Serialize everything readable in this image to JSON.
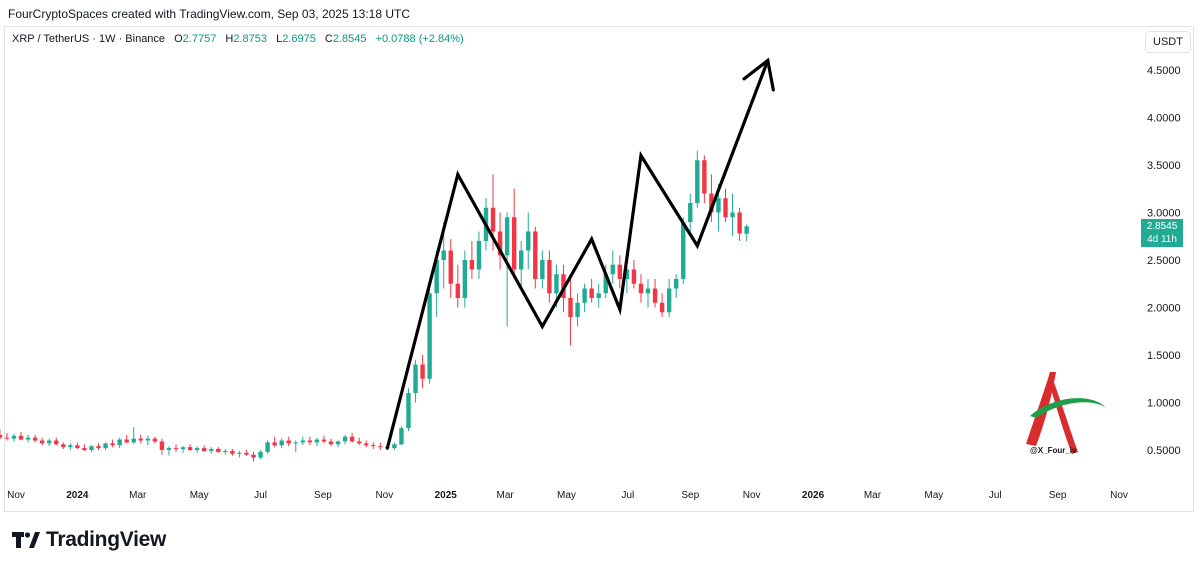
{
  "header": {
    "attribution": "FourCryptoSpaces created with TradingView.com, Sep 03, 2025 13:18 UTC"
  },
  "legend": {
    "symbol": "XRP / TetherUS · 1W · Binance",
    "open_key": "O",
    "open": "2.7757",
    "high_key": "H",
    "high": "2.8753",
    "low_key": "L",
    "low": "2.6975",
    "close_key": "C",
    "close": "2.8545",
    "change": "+0.0788 (+2.84%)"
  },
  "price_scale": {
    "unit_label": "USDT",
    "current_price": "2.8545",
    "countdown": "4d 11h"
  },
  "watermark": {
    "handle": "@X_Four_iv"
  },
  "brand": {
    "name": "TradingView"
  },
  "colors": {
    "up": "#22ab94",
    "down": "#f23645",
    "projection": "#000000",
    "accent": "#089981"
  },
  "chart_data": {
    "type": "candlestick",
    "y_scale": "linear",
    "ylim": [
      0.2,
      4.8
    ],
    "y_ticks": [
      "4.5000",
      "4.0000",
      "3.5000",
      "3.0000",
      "2.5000",
      "2.0000",
      "1.5000",
      "1.0000",
      "0.5000"
    ],
    "y_tick_values": [
      4.5,
      4.0,
      3.5,
      3.0,
      2.5,
      2.0,
      1.5,
      1.0,
      0.5
    ],
    "x_ticks": [
      "Nov",
      "2024",
      "Mar",
      "May",
      "Jul",
      "Sep",
      "Nov",
      "2025",
      "Mar",
      "May",
      "Jul",
      "Sep",
      "Nov",
      "2026",
      "Mar",
      "May",
      "Jul",
      "Sep",
      "Nov"
    ],
    "x_tick_dates": [
      "2023-11-01",
      "2024-01-01",
      "2024-03-01",
      "2024-05-01",
      "2024-07-01",
      "2024-09-01",
      "2024-11-01",
      "2025-01-01",
      "2025-03-01",
      "2025-05-01",
      "2025-07-01",
      "2025-09-01",
      "2025-11-01",
      "2026-01-01",
      "2026-03-01",
      "2026-05-01",
      "2026-07-01",
      "2026-09-01",
      "2026-11-01"
    ],
    "candles_ohlc": [
      [
        0.62,
        0.7,
        0.58,
        0.66
      ],
      [
        0.66,
        0.72,
        0.61,
        0.63
      ],
      [
        0.63,
        0.68,
        0.6,
        0.62
      ],
      [
        0.62,
        0.67,
        0.59,
        0.65
      ],
      [
        0.65,
        0.69,
        0.6,
        0.61
      ],
      [
        0.61,
        0.66,
        0.58,
        0.63
      ],
      [
        0.63,
        0.66,
        0.58,
        0.6
      ],
      [
        0.6,
        0.63,
        0.55,
        0.57
      ],
      [
        0.57,
        0.62,
        0.54,
        0.6
      ],
      [
        0.6,
        0.63,
        0.55,
        0.56
      ],
      [
        0.56,
        0.58,
        0.51,
        0.53
      ],
      [
        0.53,
        0.57,
        0.5,
        0.55
      ],
      [
        0.55,
        0.58,
        0.51,
        0.52
      ],
      [
        0.52,
        0.56,
        0.49,
        0.5
      ],
      [
        0.5,
        0.55,
        0.48,
        0.54
      ],
      [
        0.54,
        0.57,
        0.5,
        0.52
      ],
      [
        0.52,
        0.58,
        0.5,
        0.57
      ],
      [
        0.57,
        0.61,
        0.53,
        0.55
      ],
      [
        0.55,
        0.63,
        0.52,
        0.61
      ],
      [
        0.61,
        0.66,
        0.57,
        0.58
      ],
      [
        0.58,
        0.74,
        0.56,
        0.62
      ],
      [
        0.62,
        0.66,
        0.57,
        0.6
      ],
      [
        0.6,
        0.65,
        0.55,
        0.62
      ],
      [
        0.62,
        0.64,
        0.57,
        0.59
      ],
      [
        0.59,
        0.62,
        0.45,
        0.5
      ],
      [
        0.5,
        0.54,
        0.44,
        0.52
      ],
      [
        0.52,
        0.56,
        0.48,
        0.51
      ],
      [
        0.51,
        0.54,
        0.47,
        0.53
      ],
      [
        0.53,
        0.56,
        0.49,
        0.5
      ],
      [
        0.5,
        0.54,
        0.47,
        0.52
      ],
      [
        0.52,
        0.55,
        0.48,
        0.49
      ],
      [
        0.49,
        0.53,
        0.46,
        0.51
      ],
      [
        0.51,
        0.53,
        0.47,
        0.48
      ],
      [
        0.48,
        0.51,
        0.45,
        0.49
      ],
      [
        0.49,
        0.51,
        0.44,
        0.46
      ],
      [
        0.46,
        0.49,
        0.42,
        0.47
      ],
      [
        0.47,
        0.5,
        0.44,
        0.45
      ],
      [
        0.45,
        0.48,
        0.38,
        0.42
      ],
      [
        0.42,
        0.5,
        0.4,
        0.48
      ],
      [
        0.48,
        0.6,
        0.46,
        0.58
      ],
      [
        0.58,
        0.64,
        0.53,
        0.55
      ],
      [
        0.55,
        0.62,
        0.52,
        0.6
      ],
      [
        0.6,
        0.64,
        0.54,
        0.57
      ],
      [
        0.57,
        0.6,
        0.48,
        0.58
      ],
      [
        0.58,
        0.64,
        0.55,
        0.6
      ],
      [
        0.6,
        0.64,
        0.55,
        0.58
      ],
      [
        0.58,
        0.63,
        0.54,
        0.61
      ],
      [
        0.61,
        0.65,
        0.57,
        0.59
      ],
      [
        0.59,
        0.62,
        0.54,
        0.56
      ],
      [
        0.56,
        0.6,
        0.53,
        0.59
      ],
      [
        0.59,
        0.66,
        0.56,
        0.64
      ],
      [
        0.64,
        0.68,
        0.58,
        0.59
      ],
      [
        0.59,
        0.63,
        0.55,
        0.57
      ],
      [
        0.57,
        0.6,
        0.53,
        0.55
      ],
      [
        0.55,
        0.58,
        0.51,
        0.54
      ],
      [
        0.54,
        0.58,
        0.5,
        0.53
      ],
      [
        0.53,
        0.56,
        0.5,
        0.52
      ],
      [
        0.52,
        0.58,
        0.5,
        0.56
      ],
      [
        0.56,
        0.75,
        0.55,
        0.73
      ],
      [
        0.73,
        1.15,
        0.7,
        1.1
      ],
      [
        1.1,
        1.45,
        1.0,
        1.4
      ],
      [
        1.4,
        1.5,
        1.15,
        1.25
      ],
      [
        1.25,
        2.2,
        1.2,
        2.15
      ],
      [
        2.15,
        2.6,
        1.9,
        2.5
      ],
      [
        2.5,
        2.9,
        2.2,
        2.6
      ],
      [
        2.6,
        2.72,
        2.1,
        2.25
      ],
      [
        2.25,
        2.45,
        2.0,
        2.1
      ],
      [
        2.1,
        2.6,
        2.0,
        2.5
      ],
      [
        2.5,
        2.7,
        2.3,
        2.4
      ],
      [
        2.4,
        2.8,
        2.3,
        2.7
      ],
      [
        2.7,
        3.15,
        2.6,
        3.05
      ],
      [
        3.05,
        3.4,
        2.6,
        2.8
      ],
      [
        2.8,
        3.0,
        2.4,
        2.55
      ],
      [
        2.55,
        3.0,
        1.8,
        2.95
      ],
      [
        2.95,
        3.25,
        2.3,
        2.4
      ],
      [
        2.4,
        2.7,
        2.2,
        2.6
      ],
      [
        2.6,
        3.0,
        2.4,
        2.8
      ],
      [
        2.8,
        2.85,
        2.2,
        2.3
      ],
      [
        2.3,
        2.6,
        2.2,
        2.5
      ],
      [
        2.5,
        2.6,
        2.05,
        2.15
      ],
      [
        2.15,
        2.45,
        2.0,
        2.35
      ],
      [
        2.35,
        2.45,
        1.95,
        2.1
      ],
      [
        2.1,
        2.3,
        1.6,
        1.9
      ],
      [
        1.9,
        2.15,
        1.8,
        2.05
      ],
      [
        2.05,
        2.25,
        1.95,
        2.2
      ],
      [
        2.2,
        2.3,
        2.05,
        2.1
      ],
      [
        2.1,
        2.25,
        2.0,
        2.15
      ],
      [
        2.15,
        2.45,
        2.1,
        2.35
      ],
      [
        2.35,
        2.6,
        2.25,
        2.45
      ],
      [
        2.45,
        2.55,
        2.2,
        2.3
      ],
      [
        2.3,
        2.5,
        2.15,
        2.4
      ],
      [
        2.4,
        2.5,
        2.2,
        2.25
      ],
      [
        2.25,
        2.35,
        2.05,
        2.15
      ],
      [
        2.15,
        2.3,
        2.0,
        2.2
      ],
      [
        2.2,
        2.3,
        2.0,
        2.05
      ],
      [
        2.05,
        2.15,
        1.9,
        1.95
      ],
      [
        1.95,
        2.3,
        1.9,
        2.2
      ],
      [
        2.2,
        2.35,
        2.1,
        2.3
      ],
      [
        2.3,
        2.95,
        2.25,
        2.9
      ],
      [
        2.9,
        3.2,
        2.8,
        3.1
      ],
      [
        3.1,
        3.65,
        3.05,
        3.55
      ],
      [
        3.55,
        3.6,
        3.1,
        3.2
      ],
      [
        3.2,
        3.4,
        2.9,
        3.0
      ],
      [
        3.0,
        3.3,
        2.8,
        3.15
      ],
      [
        3.15,
        3.25,
        2.9,
        2.95
      ],
      [
        2.95,
        3.2,
        2.75,
        3.0
      ],
      [
        3.0,
        3.05,
        2.7,
        2.78
      ],
      [
        2.7757,
        2.8753,
        2.6975,
        2.8545
      ]
    ],
    "candles_start": "2023-10-09",
    "candles_step_days": 7,
    "projection_path": [
      [
        "2024-11-04",
        0.52
      ],
      [
        "2025-01-13",
        3.4
      ],
      [
        "2025-04-07",
        1.8
      ],
      [
        "2025-05-26",
        2.72
      ],
      [
        "2025-06-23",
        1.98
      ],
      [
        "2025-07-14",
        3.6
      ],
      [
        "2025-09-08",
        2.65
      ],
      [
        "2025-11-17",
        4.6
      ]
    ]
  }
}
